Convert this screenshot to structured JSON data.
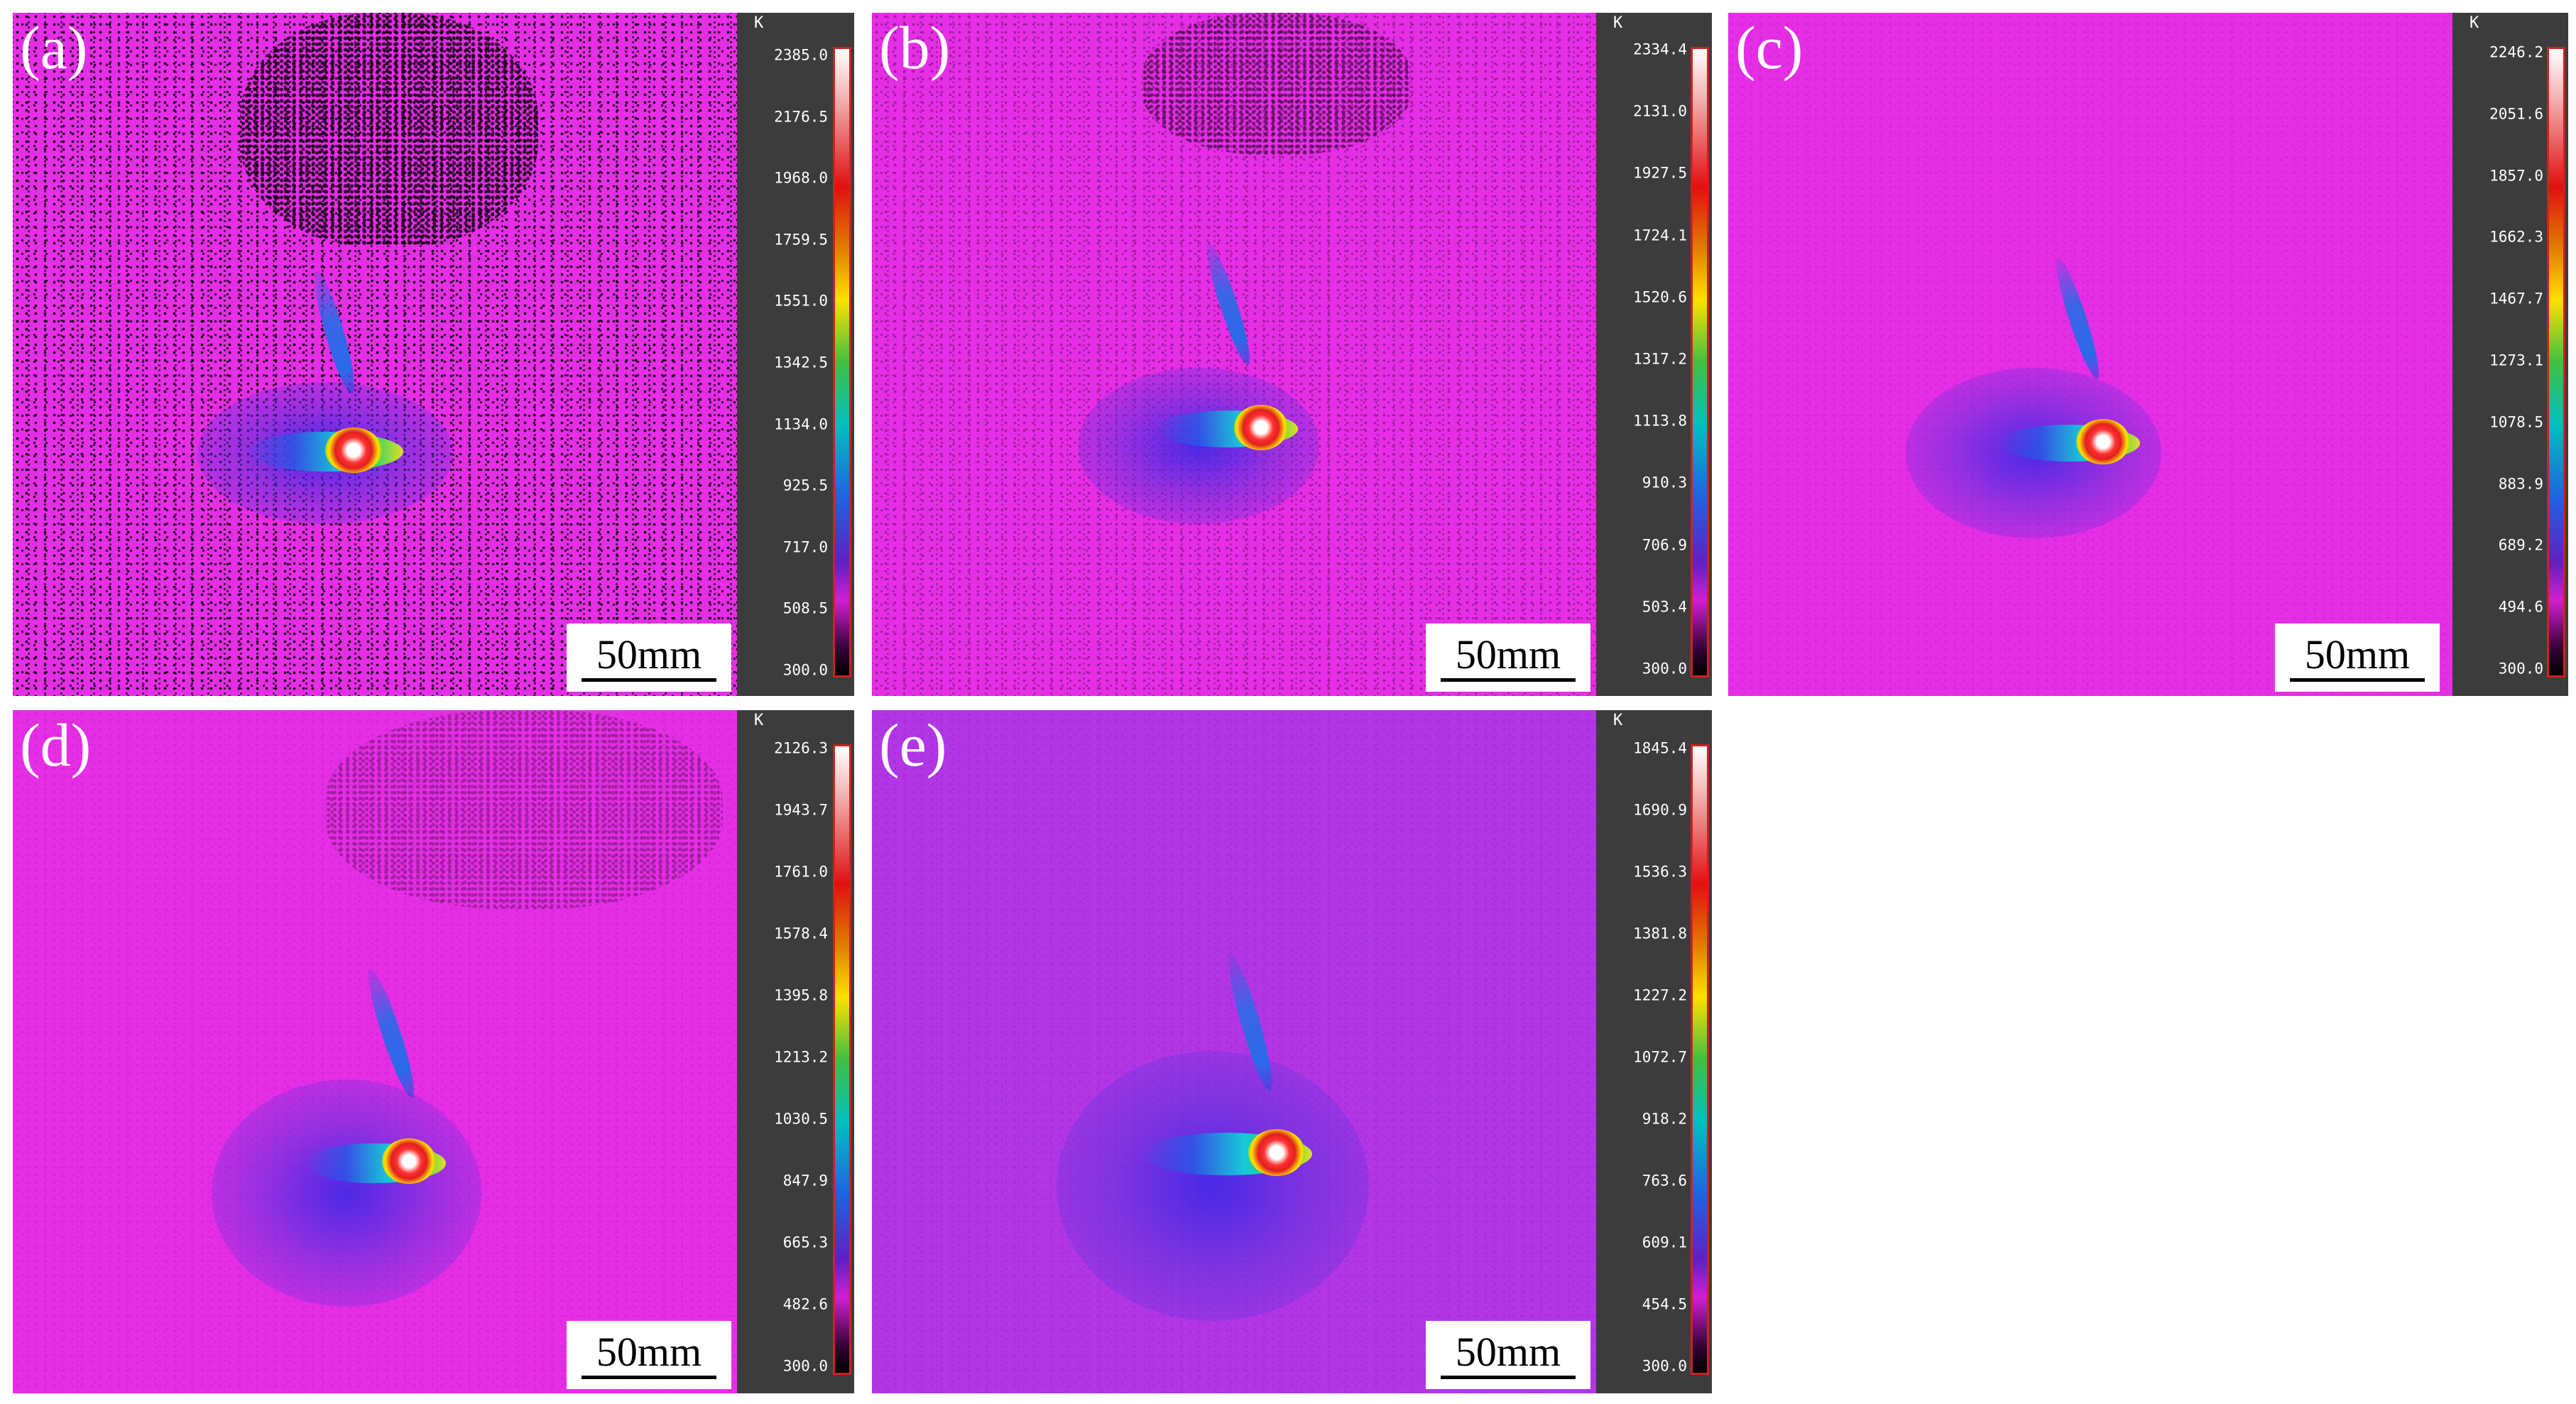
{
  "panels": [
    {
      "label": "(a)",
      "scale_bar": "50mm",
      "unit": "K",
      "ticks": [
        "2385.0",
        "2176.5",
        "1968.0",
        "1759.5",
        "1551.0",
        "1342.5",
        "1134.0",
        "925.5",
        "717.0",
        "508.5",
        "300.0"
      ]
    },
    {
      "label": "(b)",
      "scale_bar": "50mm",
      "unit": "K",
      "ticks": [
        "2334.4",
        "2131.0",
        "1927.5",
        "1724.1",
        "1520.6",
        "1317.2",
        "1113.8",
        "910.3",
        "706.9",
        "503.4",
        "300.0"
      ]
    },
    {
      "label": "(c)",
      "scale_bar": "50mm",
      "unit": "K",
      "ticks": [
        "2246.2",
        "2051.6",
        "1857.0",
        "1662.3",
        "1467.7",
        "1273.1",
        "1078.5",
        "883.9",
        "689.2",
        "494.6",
        "300.0"
      ]
    },
    {
      "label": "(d)",
      "scale_bar": "50mm",
      "unit": "K",
      "ticks": [
        "2126.3",
        "1943.7",
        "1761.0",
        "1578.4",
        "1395.8",
        "1213.2",
        "1030.5",
        "847.9",
        "665.3",
        "482.6",
        "300.0"
      ]
    },
    {
      "label": "(e)",
      "scale_bar": "50mm",
      "unit": "K",
      "ticks": [
        "1845.4",
        "1690.9",
        "1536.3",
        "1381.8",
        "1227.2",
        "1072.7",
        "918.2",
        "763.6",
        "609.1",
        "454.5",
        "300.0"
      ]
    }
  ]
}
